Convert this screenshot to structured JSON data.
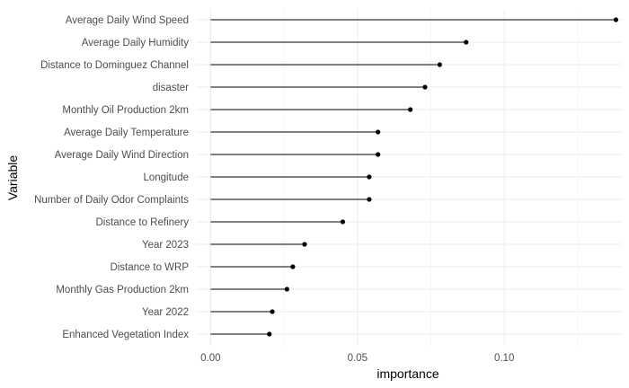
{
  "chart_data": {
    "type": "lollipop",
    "orientation": "horizontal",
    "xlabel": "importance",
    "ylabel": "Variable",
    "xlim": [
      -0.005,
      0.14
    ],
    "xticks": [
      0.0,
      0.05,
      0.1
    ],
    "xtick_labels": [
      "0.00",
      "0.05",
      "0.10"
    ],
    "grid": true,
    "categories": [
      "Average Daily Wind Speed",
      "Average Daily Humidity",
      "Distance to Dominguez Channel",
      "disaster",
      "Monthly Oil Production 2km",
      "Average Daily Temperature",
      "Average Daily Wind Direction",
      "Longitude",
      "Number of Daily Odor Complaints",
      "Distance to Refinery",
      "Year 2023",
      "Distance to WRP",
      "Monthly Gas Production 2km",
      "Year 2022",
      "Enhanced Vegetation Index"
    ],
    "values": [
      0.138,
      0.087,
      0.078,
      0.073,
      0.068,
      0.057,
      0.057,
      0.054,
      0.054,
      0.045,
      0.032,
      0.028,
      0.026,
      0.021,
      0.02
    ],
    "colors": {
      "stem": "#000000",
      "point": "#000000",
      "grid_major": "#ebebeb",
      "grid_minor": "#f3f3f3",
      "tick_text": "#4d4d4d"
    }
  }
}
